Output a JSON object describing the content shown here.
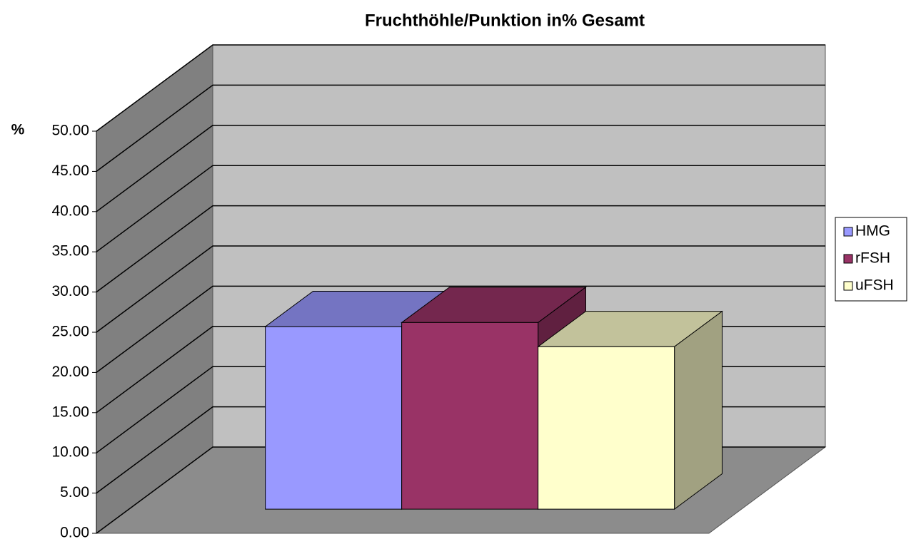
{
  "chart_data": {
    "type": "bar3d",
    "title": "Fruchthöhle/Punktion in% Gesamt",
    "y_label": "%",
    "categories": [
      null
    ],
    "series": [
      {
        "name": "HMG",
        "color": "#9999ff",
        "values": [
          22.7
        ]
      },
      {
        "name": "rFSH",
        "color": "#993366",
        "values": [
          23.2
        ]
      },
      {
        "name": "uFSH",
        "color": "#ffffcc",
        "values": [
          20.2
        ]
      }
    ],
    "ylim": [
      0,
      50
    ],
    "yticks": [
      {
        "value": 0,
        "label": "0.00"
      },
      {
        "value": 5,
        "label": "5.00"
      },
      {
        "value": 10,
        "label": "10.00"
      },
      {
        "value": 15,
        "label": "15.00"
      },
      {
        "value": 20,
        "label": "20.00"
      },
      {
        "value": 25,
        "label": "25.00"
      },
      {
        "value": 30,
        "label": "30.00"
      },
      {
        "value": 35,
        "label": "35.00"
      },
      {
        "value": 40,
        "label": "40.00"
      },
      {
        "value": 45,
        "label": "45.00"
      },
      {
        "value": 50,
        "label": "50.00"
      }
    ],
    "grid": true,
    "legend": "right"
  }
}
